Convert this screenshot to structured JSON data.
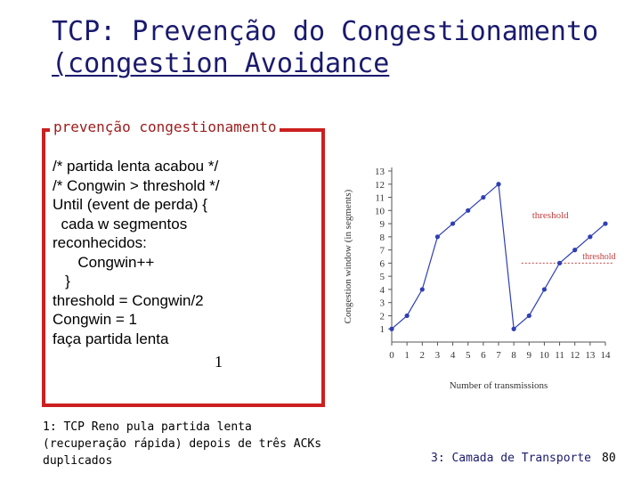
{
  "slide": {
    "title_line1": "TCP: Prevenção do Congestionamento",
    "title_line2": "(congestion Avoidance",
    "box_label": "prevenção congestionamento",
    "code_lines": [
      "/* partida lenta acabou */",
      "/* Congwin > threshold */",
      "Until (event de perda) {",
      "  cada w segmentos",
      "reconhecidos:",
      "      Congwin++",
      "   }",
      "threshold = Congwin/2",
      "Congwin = 1",
      "faça partida lenta"
    ],
    "marker": "1",
    "footnote": "1: TCP Reno pula partida lenta (recuperação rápida) depois de três ACKs duplicados",
    "footer": "3: Camada de Transporte",
    "page_number": "80"
  },
  "chart_data": {
    "type": "line",
    "ylabel": "Congestion window (in segments)",
    "xlabel": "Number of transmissions",
    "x_ticks": [
      "0",
      "1",
      "2",
      "3",
      "4",
      "5",
      "6",
      "7",
      "8",
      "9",
      "10",
      "11",
      "12",
      "13",
      "14"
    ],
    "y_ticks": [
      "1",
      "2",
      "3",
      "4",
      "5",
      "6",
      "7",
      "8",
      "9",
      "10",
      "11",
      "12",
      "13"
    ],
    "xlim": [
      0,
      14
    ],
    "ylim": [
      0,
      13
    ],
    "series": [
      {
        "x": [
          0,
          1,
          2,
          3,
          4,
          5,
          6,
          7,
          8,
          9,
          10,
          11,
          12,
          13,
          14
        ],
        "values": [
          1,
          2,
          4,
          8,
          9,
          10,
          11,
          12,
          1,
          2,
          4,
          6,
          7,
          8,
          9
        ],
        "color": "#2f3fb3"
      }
    ],
    "annotations": [
      {
        "text": "threshold",
        "color": "#c04040",
        "y_value": 6
      },
      {
        "text": "threshold",
        "color": "#c04040",
        "y_value": 6
      }
    ],
    "grid": false
  }
}
